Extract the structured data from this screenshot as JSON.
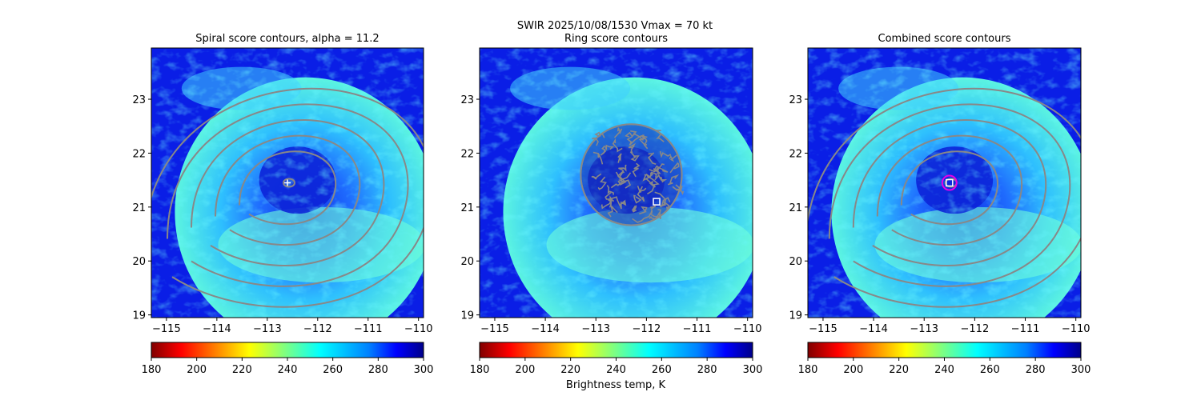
{
  "figure": {
    "suptitle_line1": "SWIR  2025/10/08/1530    Vmax = 70 kt",
    "colorbar_label": "Brightness temp, K"
  },
  "chart_data": [
    {
      "type": "heatmap",
      "title": "Spiral score contours, alpha = 11.2",
      "xlim": [
        -115.3,
        -109.9
      ],
      "ylim": [
        18.95,
        23.95
      ],
      "xticks": [
        -115,
        -114,
        -113,
        -112,
        -111,
        -110
      ],
      "yticks": [
        19,
        20,
        21,
        22,
        23
      ],
      "contour_color": "#888888",
      "contour_levels": 6,
      "center_marker": {
        "type": "plus",
        "lon": -112.6,
        "lat": 21.45,
        "color": "#ffffff"
      },
      "colorbar": {
        "range": [
          180,
          300
        ],
        "ticks": [
          180,
          200,
          220,
          240,
          260,
          280,
          300
        ],
        "cmap": "jet_r"
      }
    },
    {
      "type": "heatmap",
      "title": "Ring score contours",
      "xlim": [
        -115.3,
        -109.9
      ],
      "ylim": [
        18.95,
        23.95
      ],
      "xticks": [
        -115,
        -114,
        -113,
        -112,
        -111,
        -110
      ],
      "yticks": [
        19,
        20,
        21,
        22,
        23
      ],
      "contour_color": "#888888",
      "ring_region": {
        "lon": -112.3,
        "lat": 21.6,
        "radius_deg": 1.0
      },
      "center_marker": {
        "type": "square",
        "lon": -111.8,
        "lat": 21.1,
        "color": "#ffffff"
      },
      "colorbar": {
        "range": [
          180,
          300
        ],
        "ticks": [
          180,
          200,
          220,
          240,
          260,
          280,
          300
        ],
        "cmap": "jet_r"
      }
    },
    {
      "type": "heatmap",
      "title": "Combined score contours",
      "xlim": [
        -115.3,
        -109.9
      ],
      "ylim": [
        18.95,
        23.95
      ],
      "xticks": [
        -115,
        -114,
        -113,
        -112,
        -111,
        -110
      ],
      "yticks": [
        19,
        20,
        21,
        22,
        23
      ],
      "contour_color": "#888888",
      "contour_levels": 6,
      "center_marker": {
        "type": "square",
        "lon": -112.5,
        "lat": 21.45,
        "color": "#ffffff"
      },
      "center_circle": {
        "lon": -112.5,
        "lat": 21.45,
        "color": "#e600e6"
      },
      "colorbar": {
        "range": [
          180,
          300
        ],
        "ticks": [
          180,
          200,
          220,
          240,
          260,
          280,
          300
        ],
        "cmap": "jet_r"
      }
    }
  ]
}
